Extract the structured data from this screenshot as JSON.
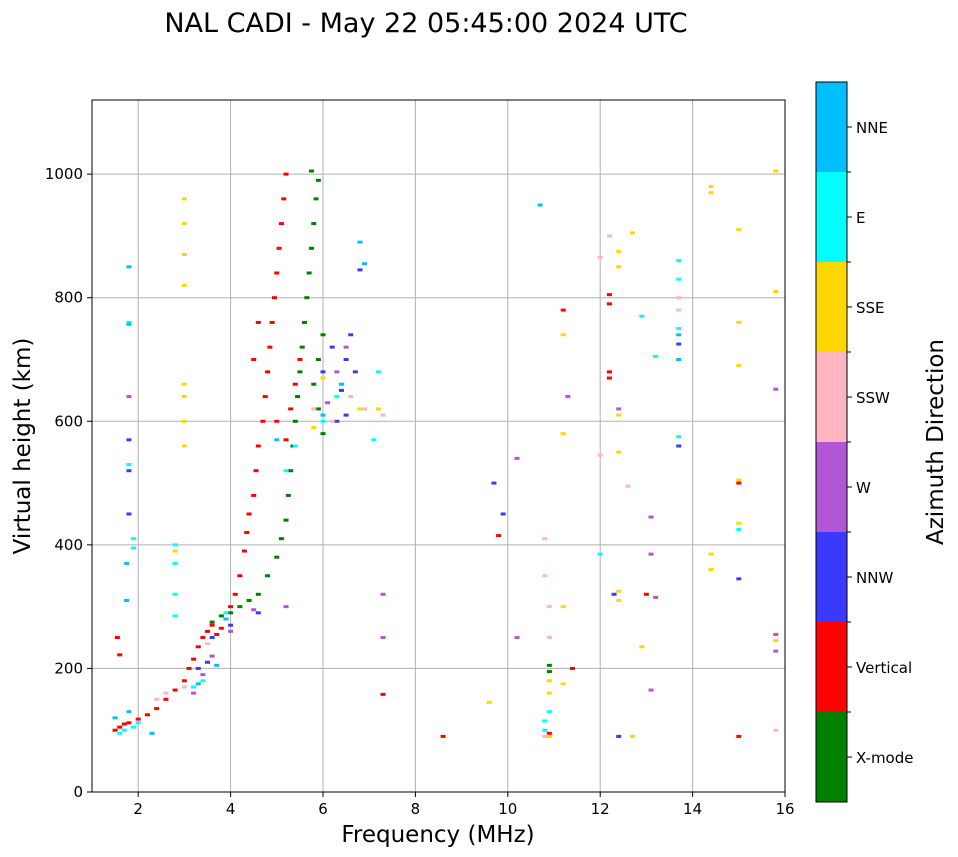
{
  "chart_data": {
    "type": "scatter",
    "title": "NAL CADI - May 22 05:45:00 2024 UTC",
    "xlabel": "Frequency (MHz)",
    "ylabel": "Virtual height (km)",
    "xlim": [
      1,
      16
    ],
    "ylim": [
      0,
      1120
    ],
    "xticks": [
      2,
      4,
      6,
      8,
      10,
      12,
      14,
      16
    ],
    "yticks": [
      0,
      200,
      400,
      600,
      800,
      1000
    ],
    "grid": true,
    "colorbar": {
      "label": "Azimuth Direction",
      "categories": [
        {
          "name": "NNE",
          "color": "#00BFFF"
        },
        {
          "name": "E",
          "color": "#00FFFF"
        },
        {
          "name": "SSE",
          "color": "#FFD700"
        },
        {
          "name": "SSW",
          "color": "#FFB6C1"
        },
        {
          "name": "W",
          "color": "#B157D6"
        },
        {
          "name": "NNW",
          "color": "#3A3AFF"
        },
        {
          "name": "Vertical",
          "color": "#FF0000"
        },
        {
          "name": "X-mode",
          "color": "#008000"
        }
      ]
    },
    "series": [
      {
        "name": "Vertical",
        "color": "#FF0000",
        "points": [
          [
            1.5,
            100
          ],
          [
            1.6,
            105
          ],
          [
            1.7,
            110
          ],
          [
            1.8,
            112
          ],
          [
            2.0,
            118
          ],
          [
            2.2,
            125
          ],
          [
            2.4,
            135
          ],
          [
            2.6,
            150
          ],
          [
            2.8,
            165
          ],
          [
            3.0,
            180
          ],
          [
            3.1,
            200
          ],
          [
            3.2,
            215
          ],
          [
            3.3,
            235
          ],
          [
            3.4,
            250
          ],
          [
            3.5,
            260
          ],
          [
            3.6,
            270
          ],
          [
            3.7,
            255
          ],
          [
            3.8,
            265
          ],
          [
            3.9,
            280
          ],
          [
            4.0,
            300
          ],
          [
            4.1,
            320
          ],
          [
            4.2,
            350
          ],
          [
            4.3,
            390
          ],
          [
            4.35,
            420
          ],
          [
            4.4,
            450
          ],
          [
            4.5,
            480
          ],
          [
            4.55,
            520
          ],
          [
            4.6,
            560
          ],
          [
            4.7,
            600
          ],
          [
            4.75,
            640
          ],
          [
            4.8,
            680
          ],
          [
            4.85,
            720
          ],
          [
            4.9,
            760
          ],
          [
            4.95,
            800
          ],
          [
            5.0,
            840
          ],
          [
            5.05,
            880
          ],
          [
            5.1,
            920
          ],
          [
            5.15,
            960
          ],
          [
            5.2,
            1000
          ],
          [
            5.3,
            620
          ],
          [
            5.4,
            660
          ],
          [
            5.5,
            700
          ],
          [
            5.2,
            570
          ],
          [
            5.0,
            600
          ],
          [
            4.6,
            760
          ],
          [
            4.5,
            700
          ],
          [
            1.55,
            250
          ],
          [
            1.6,
            222
          ],
          [
            7.3,
            158
          ],
          [
            9.8,
            415
          ],
          [
            10.9,
            95
          ],
          [
            11.4,
            200
          ],
          [
            12.2,
            790
          ],
          [
            12.2,
            805
          ],
          [
            12.2,
            680
          ],
          [
            12.2,
            670
          ],
          [
            13.0,
            320
          ],
          [
            15.0,
            500
          ],
          [
            15.0,
            90
          ],
          [
            8.6,
            90
          ],
          [
            11.2,
            780
          ]
        ]
      },
      {
        "name": "X-mode",
        "color": "#008000",
        "points": [
          [
            3.6,
            275
          ],
          [
            3.8,
            285
          ],
          [
            4.0,
            290
          ],
          [
            4.2,
            300
          ],
          [
            4.4,
            310
          ],
          [
            4.6,
            320
          ],
          [
            4.8,
            350
          ],
          [
            5.0,
            380
          ],
          [
            5.1,
            410
          ],
          [
            5.2,
            440
          ],
          [
            5.25,
            480
          ],
          [
            5.3,
            520
          ],
          [
            5.35,
            560
          ],
          [
            5.4,
            600
          ],
          [
            5.45,
            640
          ],
          [
            5.5,
            680
          ],
          [
            5.55,
            720
          ],
          [
            5.6,
            760
          ],
          [
            5.65,
            800
          ],
          [
            5.7,
            840
          ],
          [
            5.75,
            880
          ],
          [
            5.8,
            920
          ],
          [
            5.85,
            960
          ],
          [
            5.9,
            990
          ],
          [
            5.75,
            1005
          ],
          [
            6.0,
            580
          ],
          [
            5.9,
            620
          ],
          [
            5.8,
            660
          ],
          [
            5.9,
            700
          ],
          [
            6.0,
            740
          ],
          [
            10.9,
            205
          ],
          [
            10.9,
            195
          ]
        ]
      },
      {
        "name": "NNW",
        "color": "#3A3AFF",
        "points": [
          [
            1.8,
            570
          ],
          [
            1.8,
            520
          ],
          [
            1.8,
            450
          ],
          [
            3.3,
            200
          ],
          [
            3.5,
            210
          ],
          [
            3.6,
            250
          ],
          [
            4.0,
            270
          ],
          [
            4.6,
            290
          ],
          [
            6.3,
            600
          ],
          [
            6.4,
            650
          ],
          [
            6.5,
            700
          ],
          [
            6.6,
            740
          ],
          [
            6.2,
            720
          ],
          [
            6.0,
            680
          ],
          [
            6.8,
            845
          ],
          [
            6.5,
            610
          ],
          [
            6.7,
            680
          ],
          [
            12.4,
            90
          ],
          [
            12.3,
            320
          ],
          [
            13.7,
            725
          ],
          [
            13.7,
            560
          ],
          [
            15.0,
            345
          ],
          [
            9.7,
            500
          ],
          [
            9.9,
            450
          ]
        ]
      },
      {
        "name": "W",
        "color": "#B157D6",
        "points": [
          [
            1.8,
            640
          ],
          [
            3.2,
            160
          ],
          [
            3.4,
            190
          ],
          [
            3.6,
            220
          ],
          [
            4.0,
            260
          ],
          [
            4.5,
            295
          ],
          [
            5.2,
            300
          ],
          [
            6.1,
            630
          ],
          [
            6.3,
            680
          ],
          [
            6.5,
            720
          ],
          [
            7.3,
            320
          ],
          [
            7.3,
            250
          ],
          [
            10.2,
            540
          ],
          [
            10.2,
            250
          ],
          [
            11.3,
            640
          ],
          [
            12.4,
            620
          ],
          [
            13.1,
            445
          ],
          [
            13.1,
            385
          ],
          [
            13.2,
            315
          ],
          [
            13.1,
            165
          ],
          [
            15.8,
            255
          ],
          [
            15.8,
            228
          ],
          [
            15.8,
            652
          ]
        ]
      },
      {
        "name": "SSW",
        "color": "#FFB6C1",
        "points": [
          [
            2.4,
            150
          ],
          [
            2.6,
            160
          ],
          [
            3.0,
            170
          ],
          [
            3.5,
            240
          ],
          [
            5.8,
            620
          ],
          [
            6.2,
            600
          ],
          [
            6.6,
            640
          ],
          [
            6.9,
            620
          ],
          [
            7.3,
            610
          ],
          [
            10.8,
            90
          ],
          [
            10.9,
            300
          ],
          [
            10.9,
            250
          ],
          [
            10.8,
            350
          ],
          [
            10.8,
            410
          ],
          [
            12.0,
            545
          ],
          [
            12.0,
            865
          ],
          [
            12.2,
            900
          ],
          [
            12.6,
            495
          ],
          [
            13.7,
            800
          ],
          [
            13.7,
            780
          ],
          [
            15.8,
            100
          ]
        ]
      },
      {
        "name": "SSE",
        "color": "#FFD700",
        "points": [
          [
            3.0,
            820
          ],
          [
            3.0,
            870
          ],
          [
            3.0,
            920
          ],
          [
            3.0,
            960
          ],
          [
            3.0,
            560
          ],
          [
            3.0,
            600
          ],
          [
            3.0,
            640
          ],
          [
            3.0,
            660
          ],
          [
            2.8,
            390
          ],
          [
            5.8,
            590
          ],
          [
            6.0,
            670
          ],
          [
            6.8,
            620
          ],
          [
            7.2,
            620
          ],
          [
            10.9,
            180
          ],
          [
            10.9,
            160
          ],
          [
            10.9,
            90
          ],
          [
            11.2,
            580
          ],
          [
            11.2,
            740
          ],
          [
            11.2,
            300
          ],
          [
            11.2,
            175
          ],
          [
            12.4,
            310
          ],
          [
            12.4,
            325
          ],
          [
            12.4,
            610
          ],
          [
            12.4,
            550
          ],
          [
            12.4,
            850
          ],
          [
            12.4,
            875
          ],
          [
            12.7,
            90
          ],
          [
            12.7,
            905
          ],
          [
            12.9,
            235
          ],
          [
            14.4,
            360
          ],
          [
            14.4,
            385
          ],
          [
            14.4,
            970
          ],
          [
            14.4,
            980
          ],
          [
            15.0,
            910
          ],
          [
            15.0,
            760
          ],
          [
            15.0,
            690
          ],
          [
            15.0,
            505
          ],
          [
            15.0,
            435
          ],
          [
            15.8,
            1005
          ],
          [
            15.8,
            810
          ],
          [
            15.8,
            245
          ],
          [
            9.6,
            145
          ]
        ]
      },
      {
        "name": "E",
        "color": "#00FFFF",
        "points": [
          [
            1.6,
            95
          ],
          [
            1.7,
            100
          ],
          [
            1.9,
            105
          ],
          [
            2.0,
            112
          ],
          [
            1.8,
            530
          ],
          [
            1.9,
            410
          ],
          [
            1.9,
            395
          ],
          [
            2.8,
            400
          ],
          [
            2.8,
            370
          ],
          [
            2.8,
            320
          ],
          [
            2.8,
            285
          ],
          [
            3.2,
            170
          ],
          [
            3.4,
            180
          ],
          [
            3.9,
            290
          ],
          [
            5.2,
            520
          ],
          [
            5.4,
            560
          ],
          [
            6.0,
            600
          ],
          [
            6.3,
            640
          ],
          [
            7.1,
            570
          ],
          [
            7.2,
            680
          ],
          [
            10.8,
            100
          ],
          [
            10.8,
            115
          ],
          [
            10.9,
            130
          ],
          [
            12.0,
            385
          ],
          [
            12.9,
            770
          ],
          [
            13.2,
            705
          ],
          [
            13.7,
            860
          ],
          [
            13.7,
            830
          ],
          [
            13.7,
            750
          ],
          [
            13.7,
            575
          ],
          [
            15.0,
            425
          ],
          [
            1.8,
            760
          ]
        ]
      },
      {
        "name": "NNE",
        "color": "#00BFFF",
        "points": [
          [
            1.5,
            120
          ],
          [
            1.8,
            130
          ],
          [
            2.3,
            95
          ],
          [
            3.3,
            175
          ],
          [
            3.7,
            205
          ],
          [
            3.9,
            280
          ],
          [
            5.0,
            570
          ],
          [
            6.0,
            610
          ],
          [
            6.4,
            660
          ],
          [
            6.8,
            890
          ],
          [
            6.9,
            855
          ],
          [
            10.7,
            950
          ],
          [
            13.7,
            740
          ],
          [
            13.7,
            700
          ],
          [
            1.8,
            850
          ],
          [
            1.8,
            757
          ],
          [
            1.75,
            310
          ],
          [
            1.75,
            370
          ]
        ]
      }
    ]
  }
}
